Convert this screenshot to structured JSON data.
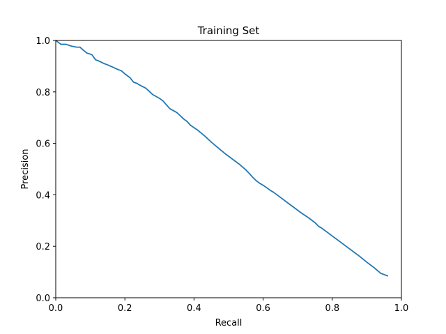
{
  "chart_data": {
    "type": "line",
    "title": "Training Set",
    "xlabel": "Recall",
    "ylabel": "Precision",
    "xlim": [
      0.0,
      1.0
    ],
    "ylim": [
      0.0,
      1.0
    ],
    "xticks": [
      0.0,
      0.2,
      0.4,
      0.6,
      0.8,
      1.0
    ],
    "yticks": [
      0.0,
      0.2,
      0.4,
      0.6,
      0.8,
      1.0
    ],
    "xtick_labels": [
      "0.0",
      "0.2",
      "0.4",
      "0.6",
      "0.8",
      "1.0"
    ],
    "ytick_labels": [
      "0.0",
      "0.2",
      "0.4",
      "0.6",
      "0.8",
      "1.0"
    ],
    "grid": false,
    "legend": false,
    "series_color": "#1f77b4",
    "series": [
      {
        "x": [
          0.0,
          0.015,
          0.03,
          0.045,
          0.06,
          0.07,
          0.08,
          0.09,
          0.1,
          0.105,
          0.115,
          0.125,
          0.14,
          0.15,
          0.17,
          0.18,
          0.19,
          0.2,
          0.215,
          0.225,
          0.235,
          0.245,
          0.26,
          0.27,
          0.28,
          0.3,
          0.31,
          0.32,
          0.33,
          0.35,
          0.36,
          0.37,
          0.38,
          0.39,
          0.41,
          0.43,
          0.45,
          0.47,
          0.49,
          0.51,
          0.53,
          0.55,
          0.56,
          0.57,
          0.58,
          0.59,
          0.6,
          0.61,
          0.62,
          0.63,
          0.65,
          0.67,
          0.69,
          0.71,
          0.73,
          0.75,
          0.76,
          0.77,
          0.78,
          0.8,
          0.82,
          0.84,
          0.86,
          0.88,
          0.9,
          0.92,
          0.94,
          0.96
        ],
        "y": [
          1.0,
          0.985,
          0.985,
          0.978,
          0.974,
          0.974,
          0.962,
          0.951,
          0.947,
          0.944,
          0.925,
          0.92,
          0.91,
          0.905,
          0.893,
          0.887,
          0.882,
          0.87,
          0.855,
          0.838,
          0.833,
          0.825,
          0.815,
          0.803,
          0.79,
          0.775,
          0.765,
          0.75,
          0.735,
          0.72,
          0.708,
          0.695,
          0.685,
          0.67,
          0.652,
          0.63,
          0.605,
          0.582,
          0.56,
          0.54,
          0.52,
          0.497,
          0.483,
          0.468,
          0.455,
          0.445,
          0.437,
          0.428,
          0.418,
          0.41,
          0.39,
          0.37,
          0.35,
          0.33,
          0.312,
          0.292,
          0.278,
          0.27,
          0.26,
          0.24,
          0.22,
          0.2,
          0.18,
          0.16,
          0.138,
          0.118,
          0.095,
          0.085
        ]
      }
    ]
  }
}
